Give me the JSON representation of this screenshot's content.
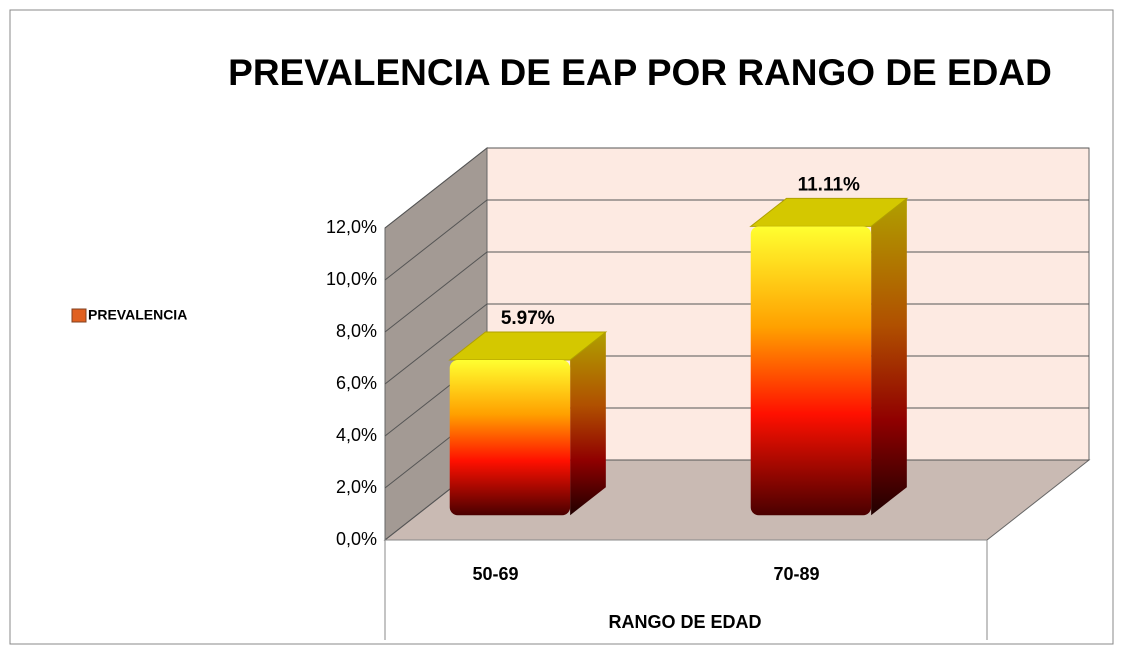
{
  "chart_data": {
    "type": "bar3d",
    "title": "PREVALENCIA DE EAP POR RANGO DE EDAD",
    "x_label": "RANGO DE EDAD",
    "legend": "PREVALENCIA",
    "legend_position": "left",
    "categories": [
      "50-69",
      "70-89"
    ],
    "values": [
      5.97,
      11.11
    ],
    "value_labels": [
      "5.97%",
      "11.11%"
    ],
    "ylim": [
      0,
      12
    ],
    "yticks": [
      {
        "value": 0,
        "label": "0,0%"
      },
      {
        "value": 2,
        "label": "2,0%"
      },
      {
        "value": 4,
        "label": "4,0%"
      },
      {
        "value": 6,
        "label": "6,0%"
      },
      {
        "value": 8,
        "label": "8,0%"
      },
      {
        "value": 10,
        "label": "10,0%"
      },
      {
        "value": 12,
        "label": "12,0%"
      }
    ],
    "grid": true
  }
}
